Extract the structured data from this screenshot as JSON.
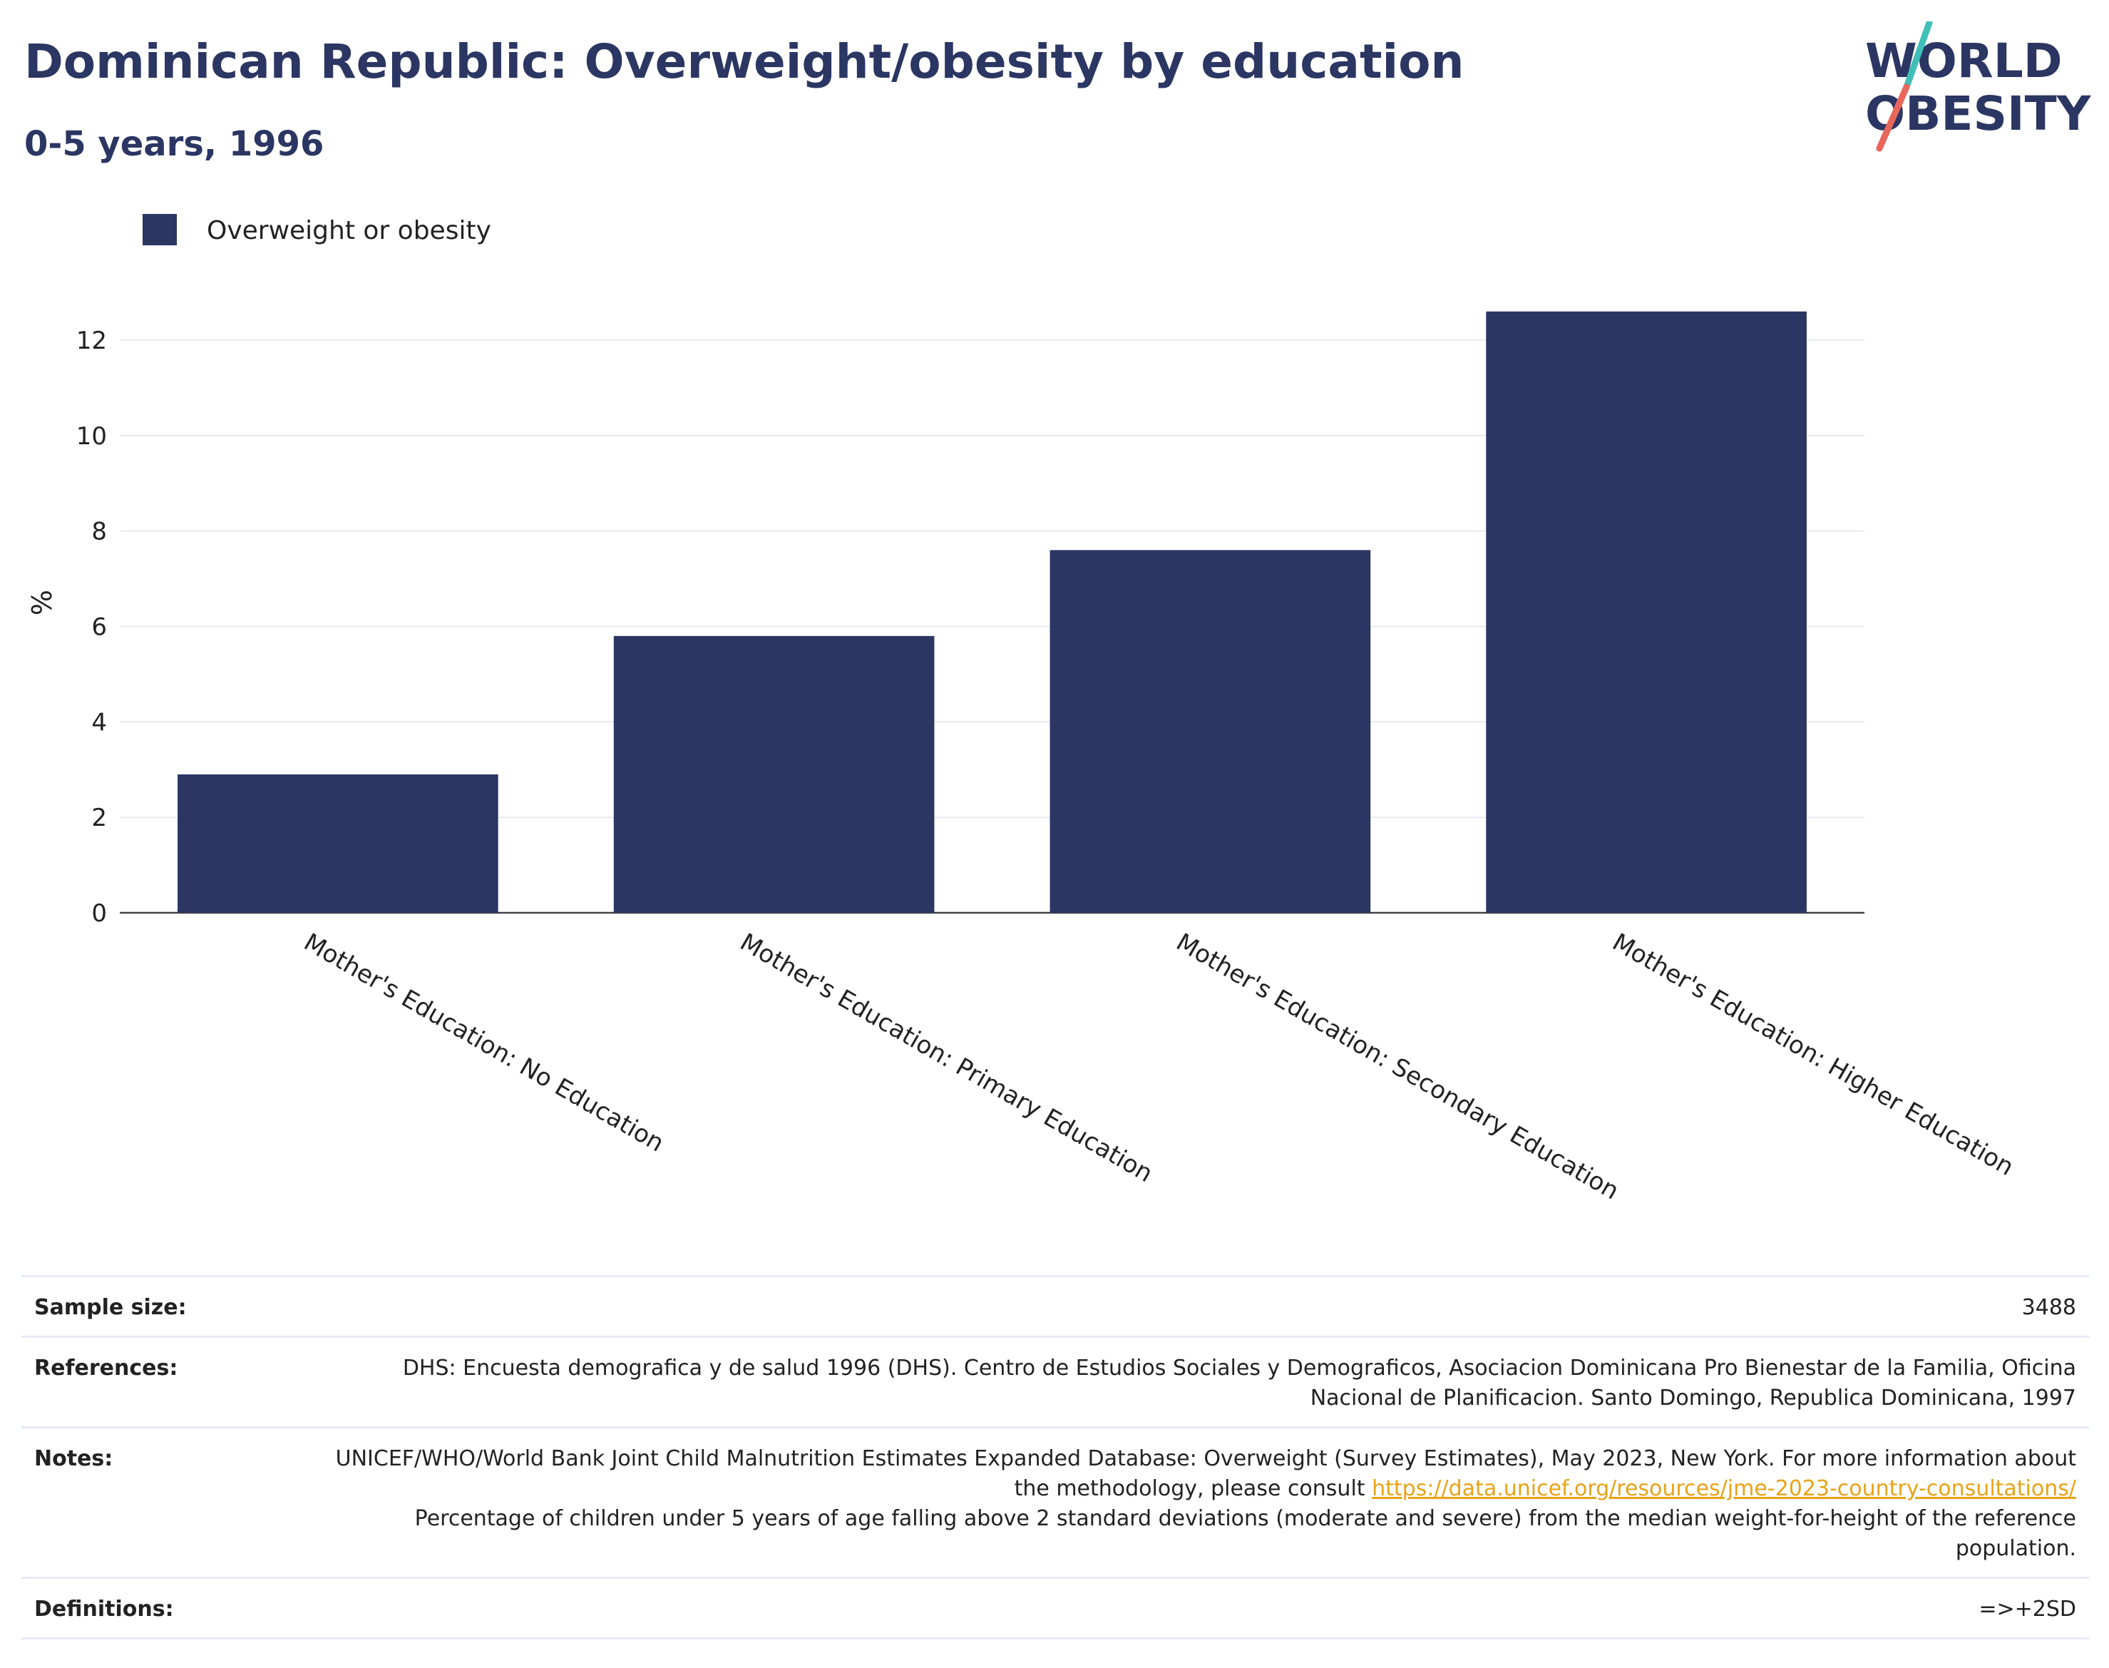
{
  "header": {
    "title": "Dominican Republic: Overweight/obesity by education",
    "subtitle": "0-5 years, 1996"
  },
  "logo": {
    "line1": "WORLD",
    "line2": "OBESITY",
    "colors": {
      "text": "#2b3663",
      "slash_top": "#3fbfb8",
      "slash_bottom": "#e8665a"
    }
  },
  "chart_data": {
    "type": "bar",
    "categories": [
      "Mother's Education: No Education",
      "Mother's Education: Primary Education",
      "Mother's Education: Secondary Education",
      "Mother's Education: Higher Education"
    ],
    "series": [
      {
        "name": "Overweight or obesity",
        "values": [
          2.9,
          5.8,
          7.6,
          12.6
        ],
        "color": "#2b3663"
      }
    ],
    "title": "",
    "xlabel": "",
    "ylabel": "%",
    "ylim": [
      0,
      13
    ],
    "yticks": [
      0,
      2,
      4,
      6,
      8,
      10,
      12
    ],
    "grid": true,
    "legend_position": "top-left"
  },
  "meta": {
    "sample_size": {
      "label": "Sample size:",
      "value": "3488"
    },
    "references": {
      "label": "References:",
      "value": "DHS: Encuesta demografica y de salud 1996 (DHS). Centro de Estudios Sociales y Demograficos, Asociacion Dominicana Pro Bienestar de la Familia, Oficina Nacional de Planificacion. Santo Domingo, Republica Dominicana, 1997"
    },
    "notes": {
      "label": "Notes:",
      "text_before": "UNICEF/WHO/World Bank Joint Child Malnutrition Estimates Expanded Database: Overweight (Survey Estimates), May 2023, New York. For more information about the methodology, please consult ",
      "link": "https://data.unicef.org/resources/jme-2023-country-consultations/",
      "text_after": "Percentage of children under 5 years of age falling above 2 standard deviations (moderate and severe) from the median weight-for-height of the reference population."
    },
    "definitions": {
      "label": "Definitions:",
      "value": "=>+2SD"
    }
  }
}
